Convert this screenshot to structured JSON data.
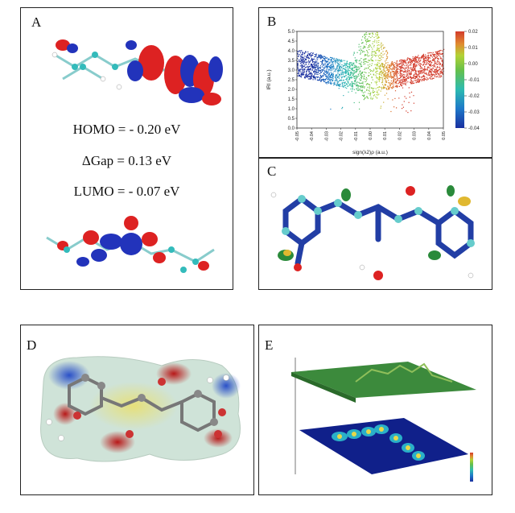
{
  "panels": {
    "a": {
      "label": "A",
      "homo": "HOMO = - 0.20 eV",
      "gap": "ΔGap = 0.13 eV",
      "lumo": "LUMO = - 0.07 eV"
    },
    "b": {
      "label": "B"
    },
    "c": {
      "label": "C"
    },
    "d": {
      "label": "D"
    },
    "e": {
      "label": "E"
    }
  },
  "chart_data": {
    "type": "scatter",
    "xlabel": "sign(λ2)ρ (a.u.)",
    "ylabel": "IRI (a.u.)",
    "xlim": [
      -0.05,
      0.05
    ],
    "ylim": [
      0,
      5.0
    ],
    "x_ticks": [
      "-0.05",
      "-0.04",
      "-0.03",
      "-0.02",
      "-0.01",
      "0.00",
      "0.01",
      "0.02",
      "0.03",
      "0.04",
      "0.05"
    ],
    "y_ticks": [
      "0.0",
      "0.5",
      "1.0",
      "1.5",
      "2.0",
      "2.5",
      "3.0",
      "3.5",
      "4.0",
      "4.5",
      "5.0"
    ],
    "colorbar": {
      "range": [
        -0.04,
        0.02
      ],
      "ticks": [
        "0.02",
        "0.01",
        "0.00",
        "-0.01",
        "-0.02",
        "-0.03",
        "-0.04"
      ],
      "colors": [
        "#1a2fa0",
        "#1e78c8",
        "#2dbbb0",
        "#66c04a",
        "#b2d235",
        "#e0c030",
        "#d23b2b"
      ]
    }
  }
}
